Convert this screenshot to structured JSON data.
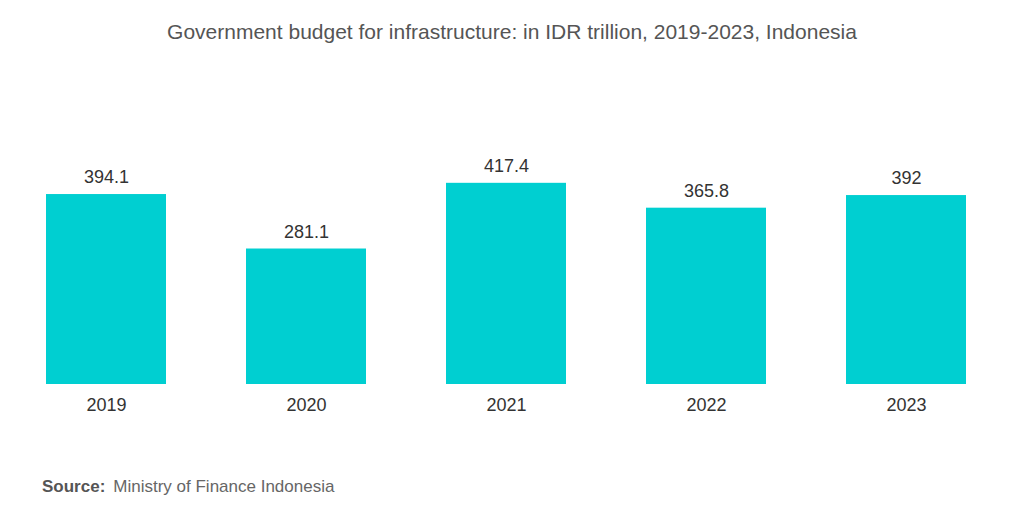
{
  "chart_data": {
    "type": "bar",
    "title": "Government budget for infrastructure: in IDR trillion, 2019-2023, Indonesia",
    "categories": [
      "2019",
      "2020",
      "2021",
      "2022",
      "2023"
    ],
    "values": [
      394.1,
      281.1,
      417.4,
      365.8,
      392
    ],
    "color": "#00cfd1",
    "ylim": [
      0,
      500
    ],
    "data_labels": true,
    "tick_labels": "x",
    "source_label": "Source:",
    "source": "Ministry of Finance Indonesia"
  }
}
